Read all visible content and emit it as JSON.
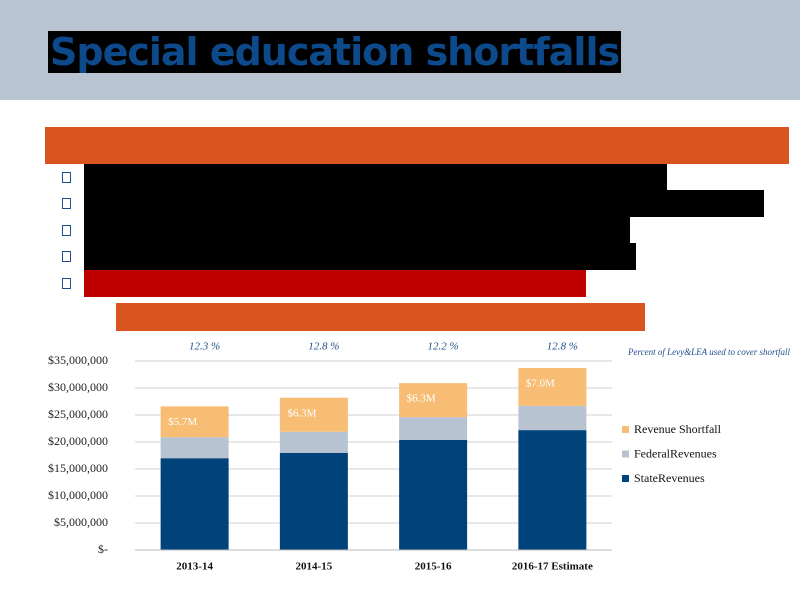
{
  "header": {
    "title": "Special education shortfalls"
  },
  "chart_data": {
    "type": "stacked-bar",
    "categories": [
      "2013-14",
      "2014-15",
      "2015-16",
      "2016-17 Estimate"
    ],
    "series": [
      {
        "name": "StateRevenues",
        "color": "#00427a",
        "values": [
          17000000,
          18000000,
          20400000,
          22200000
        ]
      },
      {
        "name": "FederalRevenues",
        "color": "#b8c3d2",
        "values": [
          3900000,
          3900000,
          4200000,
          4500000
        ]
      },
      {
        "name": "Revenue Shortfall",
        "color": "#f8bd74",
        "values": [
          5700000,
          6300000,
          6300000,
          7000000
        ],
        "value_labels": [
          "$5.7M",
          "$6.3M",
          "$6.3M",
          "$7.0M"
        ]
      }
    ],
    "ylim": [
      0,
      35000000
    ],
    "yticks": [
      {
        "value": 0,
        "label": "$-"
      },
      {
        "value": 5000000,
        "label": "$5,000,000"
      },
      {
        "value": 10000000,
        "label": "$10,000,000"
      },
      {
        "value": 15000000,
        "label": "$15,000,000"
      },
      {
        "value": 20000000,
        "label": "$20,000,000"
      },
      {
        "value": 25000000,
        "label": "$25,000,000"
      },
      {
        "value": 30000000,
        "label": "$30,000,000"
      },
      {
        "value": 35000000,
        "label": "$35,000,000"
      }
    ],
    "grid": true,
    "legend": "right",
    "percent_labels": [
      "12.3 %",
      "12.8 %",
      "12.2 %",
      "12.8 %"
    ],
    "annotation": "Percent of Levy&LEA used to cover shortfall"
  }
}
